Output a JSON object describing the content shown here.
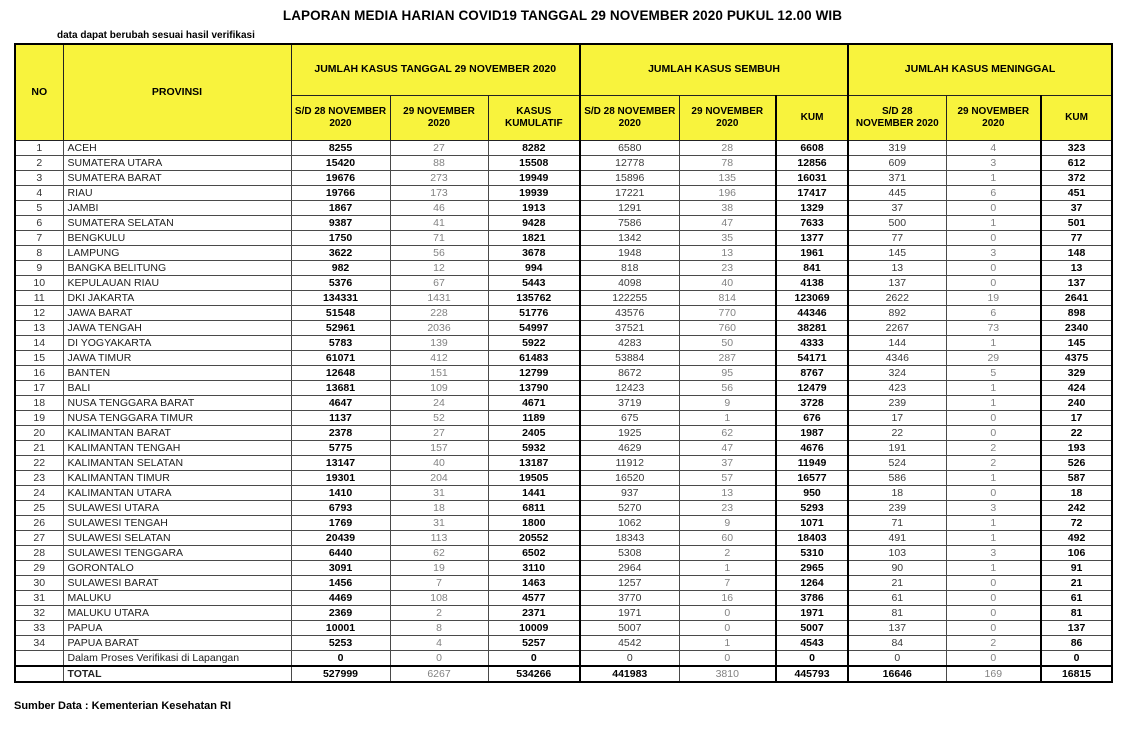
{
  "title": "LAPORAN MEDIA HARIAN COVID19 TANGGAL 29 NOVEMBER 2020 PUKUL 12.00 WIB",
  "note": "data dapat berubah sesuai hasil verifikasi",
  "source": "Sumber Data : Kementerian Kesehatan RI",
  "colors": {
    "header_bg": "#F8F33D",
    "border": "#000000",
    "secondary_number": "#828282"
  },
  "table": {
    "col_headers": {
      "no": "NO",
      "province": "PROVINSI",
      "groups": [
        {
          "label": "JUMLAH KASUS TANGGAL 29 NOVEMBER 2020",
          "sub": [
            "S/D 28 NOVEMBER 2020",
            "29 NOVEMBER 2020",
            "KASUS KUMULATIF"
          ]
        },
        {
          "label": "JUMLAH KASUS SEMBUH",
          "sub": [
            "S/D 28 NOVEMBER 2020",
            "29 NOVEMBER 2020",
            "KUM"
          ]
        },
        {
          "label": "JUMLAH KASUS MENINGGAL",
          "sub": [
            "S/D 28 NOVEMBER 2020",
            "29 NOVEMBER 2020",
            "KUM"
          ]
        }
      ]
    },
    "rows": [
      {
        "no": "1",
        "province": "ACEH",
        "values": [
          8255,
          27,
          8282,
          6580,
          28,
          6608,
          319,
          4,
          323
        ]
      },
      {
        "no": "2",
        "province": "SUMATERA UTARA",
        "values": [
          15420,
          88,
          15508,
          12778,
          78,
          12856,
          609,
          3,
          612
        ]
      },
      {
        "no": "3",
        "province": "SUMATERA BARAT",
        "values": [
          19676,
          273,
          19949,
          15896,
          135,
          16031,
          371,
          1,
          372
        ]
      },
      {
        "no": "4",
        "province": "RIAU",
        "values": [
          19766,
          173,
          19939,
          17221,
          196,
          17417,
          445,
          6,
          451
        ]
      },
      {
        "no": "5",
        "province": "JAMBI",
        "values": [
          1867,
          46,
          1913,
          1291,
          38,
          1329,
          37,
          0,
          37
        ]
      },
      {
        "no": "6",
        "province": "SUMATERA SELATAN",
        "values": [
          9387,
          41,
          9428,
          7586,
          47,
          7633,
          500,
          1,
          501
        ]
      },
      {
        "no": "7",
        "province": "BENGKULU",
        "values": [
          1750,
          71,
          1821,
          1342,
          35,
          1377,
          77,
          0,
          77
        ]
      },
      {
        "no": "8",
        "province": "LAMPUNG",
        "values": [
          3622,
          56,
          3678,
          1948,
          13,
          1961,
          145,
          3,
          148
        ]
      },
      {
        "no": "9",
        "province": "BANGKA BELITUNG",
        "values": [
          982,
          12,
          994,
          818,
          23,
          841,
          13,
          0,
          13
        ]
      },
      {
        "no": "10",
        "province": "KEPULAUAN RIAU",
        "values": [
          5376,
          67,
          5443,
          4098,
          40,
          4138,
          137,
          0,
          137
        ]
      },
      {
        "no": "11",
        "province": "DKI JAKARTA",
        "values": [
          134331,
          1431,
          135762,
          122255,
          814,
          123069,
          2622,
          19,
          2641
        ]
      },
      {
        "no": "12",
        "province": "JAWA BARAT",
        "values": [
          51548,
          228,
          51776,
          43576,
          770,
          44346,
          892,
          6,
          898
        ]
      },
      {
        "no": "13",
        "province": "JAWA TENGAH",
        "values": [
          52961,
          2036,
          54997,
          37521,
          760,
          38281,
          2267,
          73,
          2340
        ]
      },
      {
        "no": "14",
        "province": "DI YOGYAKARTA",
        "values": [
          5783,
          139,
          5922,
          4283,
          50,
          4333,
          144,
          1,
          145
        ]
      },
      {
        "no": "15",
        "province": "JAWA TIMUR",
        "values": [
          61071,
          412,
          61483,
          53884,
          287,
          54171,
          4346,
          29,
          4375
        ]
      },
      {
        "no": "16",
        "province": "BANTEN",
        "values": [
          12648,
          151,
          12799,
          8672,
          95,
          8767,
          324,
          5,
          329
        ]
      },
      {
        "no": "17",
        "province": "BALI",
        "values": [
          13681,
          109,
          13790,
          12423,
          56,
          12479,
          423,
          1,
          424
        ]
      },
      {
        "no": "18",
        "province": "NUSA TENGGARA BARAT",
        "values": [
          4647,
          24,
          4671,
          3719,
          9,
          3728,
          239,
          1,
          240
        ]
      },
      {
        "no": "19",
        "province": "NUSA TENGGARA TIMUR",
        "values": [
          1137,
          52,
          1189,
          675,
          1,
          676,
          17,
          0,
          17
        ]
      },
      {
        "no": "20",
        "province": "KALIMANTAN BARAT",
        "values": [
          2378,
          27,
          2405,
          1925,
          62,
          1987,
          22,
          0,
          22
        ]
      },
      {
        "no": "21",
        "province": "KALIMANTAN TENGAH",
        "values": [
          5775,
          157,
          5932,
          4629,
          47,
          4676,
          191,
          2,
          193
        ]
      },
      {
        "no": "22",
        "province": "KALIMANTAN SELATAN",
        "values": [
          13147,
          40,
          13187,
          11912,
          37,
          11949,
          524,
          2,
          526
        ]
      },
      {
        "no": "23",
        "province": "KALIMANTAN TIMUR",
        "values": [
          19301,
          204,
          19505,
          16520,
          57,
          16577,
          586,
          1,
          587
        ]
      },
      {
        "no": "24",
        "province": "KALIMANTAN UTARA",
        "values": [
          1410,
          31,
          1441,
          937,
          13,
          950,
          18,
          0,
          18
        ]
      },
      {
        "no": "25",
        "province": "SULAWESI UTARA",
        "values": [
          6793,
          18,
          6811,
          5270,
          23,
          5293,
          239,
          3,
          242
        ]
      },
      {
        "no": "26",
        "province": "SULAWESI TENGAH",
        "values": [
          1769,
          31,
          1800,
          1062,
          9,
          1071,
          71,
          1,
          72
        ]
      },
      {
        "no": "27",
        "province": "SULAWESI SELATAN",
        "values": [
          20439,
          113,
          20552,
          18343,
          60,
          18403,
          491,
          1,
          492
        ]
      },
      {
        "no": "28",
        "province": "SULAWESI TENGGARA",
        "values": [
          6440,
          62,
          6502,
          5308,
          2,
          5310,
          103,
          3,
          106
        ]
      },
      {
        "no": "29",
        "province": "GORONTALO",
        "values": [
          3091,
          19,
          3110,
          2964,
          1,
          2965,
          90,
          1,
          91
        ]
      },
      {
        "no": "30",
        "province": "SULAWESI BARAT",
        "values": [
          1456,
          7,
          1463,
          1257,
          7,
          1264,
          21,
          0,
          21
        ]
      },
      {
        "no": "31",
        "province": "MALUKU",
        "values": [
          4469,
          108,
          4577,
          3770,
          16,
          3786,
          61,
          0,
          61
        ]
      },
      {
        "no": "32",
        "province": "MALUKU UTARA",
        "values": [
          2369,
          2,
          2371,
          1971,
          0,
          1971,
          81,
          0,
          81
        ]
      },
      {
        "no": "33",
        "province": "PAPUA",
        "values": [
          10001,
          8,
          10009,
          5007,
          0,
          5007,
          137,
          0,
          137
        ]
      },
      {
        "no": "34",
        "province": "PAPUA BARAT",
        "values": [
          5253,
          4,
          5257,
          4542,
          1,
          4543,
          84,
          2,
          86
        ]
      },
      {
        "no": "",
        "province": "Dalam Proses Verifikasi di Lapangan",
        "values": [
          0,
          0,
          0,
          0,
          0,
          0,
          0,
          0,
          0
        ]
      }
    ],
    "total": {
      "label": "TOTAL",
      "values": [
        527999,
        6267,
        534266,
        441983,
        3810,
        445793,
        16646,
        169,
        16815
      ]
    }
  }
}
